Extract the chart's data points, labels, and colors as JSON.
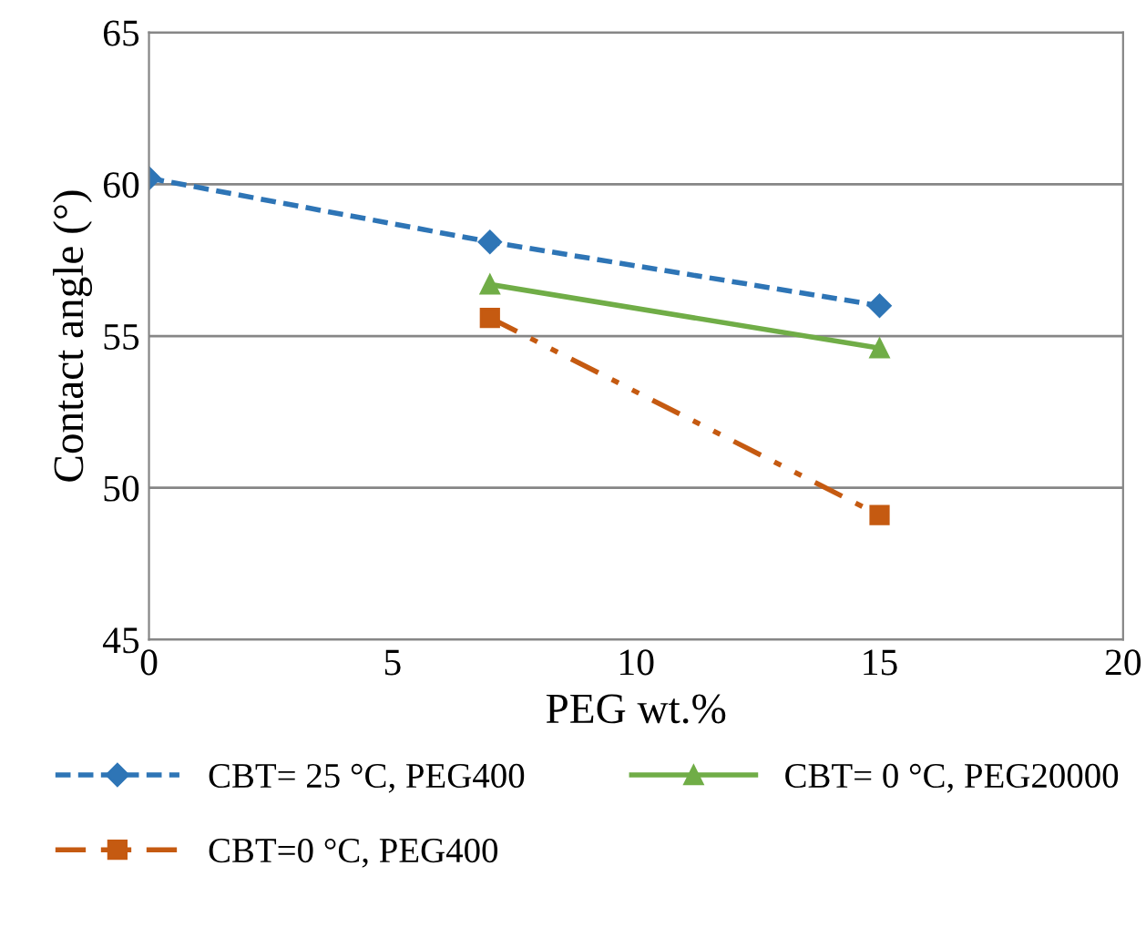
{
  "chart_data": {
    "type": "line",
    "xlabel": "PEG wt.%",
    "ylabel": "Contact angle (°)",
    "xlim": [
      0,
      20
    ],
    "xticks": [
      0,
      5,
      10,
      15,
      20
    ],
    "ylim": [
      45,
      65
    ],
    "yticks": [
      45,
      50,
      55,
      60,
      65
    ],
    "grid": "y",
    "legend": "bottom",
    "series": [
      {
        "name": "CBT= 25 °C, PEG400",
        "color": "#2e75b6",
        "x": [
          0,
          7,
          15
        ],
        "values": [
          60.2,
          58.1,
          56.0
        ],
        "marker": "diamond",
        "line_style": "dashed"
      },
      {
        "name": "CBT=0 °C, PEG400",
        "color": "#c55a11",
        "x": [
          7,
          15
        ],
        "values": [
          55.6,
          49.1
        ],
        "marker": "square",
        "line_style": "dotted"
      },
      {
        "name": "CBT= 0 °C, PEG20000",
        "color": "#70ad47",
        "x": [
          7,
          15
        ],
        "values": [
          56.7,
          54.6
        ],
        "marker": "triangle",
        "line_style": "solid"
      }
    ]
  }
}
